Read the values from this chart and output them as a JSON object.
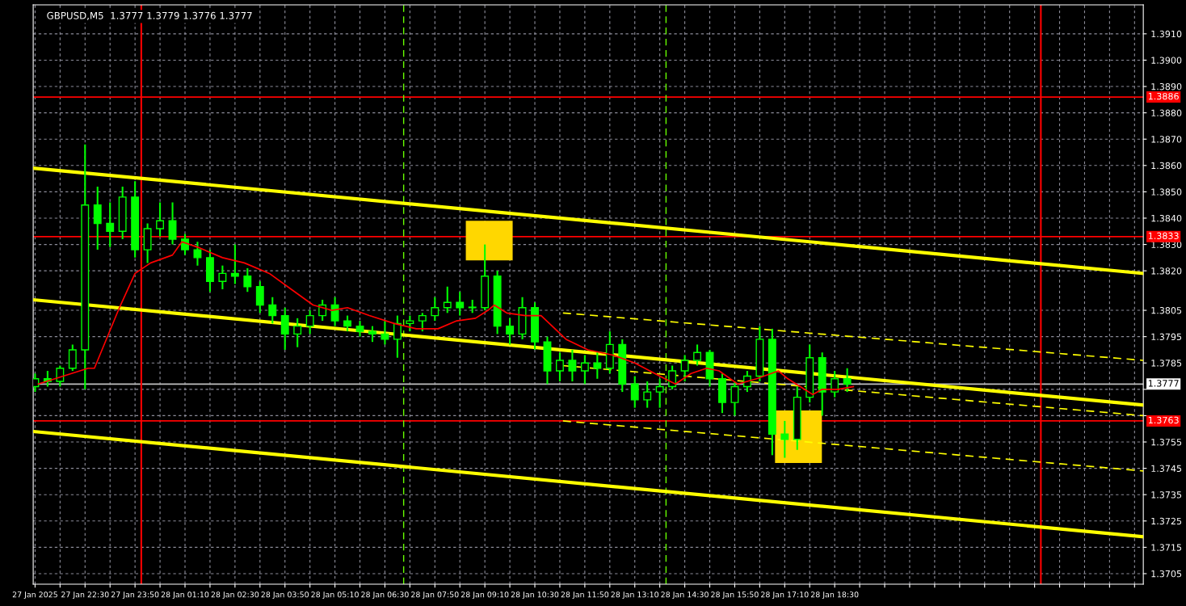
{
  "chart_data": {
    "type": "candlestick",
    "title": "GBPUSD,M5  1.3777 1.3779 1.3776 1.3777",
    "color": "#00ff00",
    "grid": true,
    "x": [
      "2025-01-27T21:10",
      "2025-01-27T21:30",
      "2025-01-27T21:50",
      "2025-01-27T22:10",
      "2025-01-27T22:30",
      "2025-01-27T22:50",
      "2025-01-27T23:10",
      "2025-01-27T23:30",
      "2025-01-27T23:50",
      "2025-01-28T00:10",
      "2025-01-28T00:30",
      "2025-01-28T00:50",
      "2025-01-28T01:10",
      "2025-01-28T01:30",
      "2025-01-28T01:50",
      "2025-01-28T02:10",
      "2025-01-28T02:30",
      "2025-01-28T02:50",
      "2025-01-28T03:10",
      "2025-01-28T03:30",
      "2025-01-28T03:50",
      "2025-01-28T04:10",
      "2025-01-28T04:30",
      "2025-01-28T04:50",
      "2025-01-28T05:10",
      "2025-01-28T05:30",
      "2025-01-28T05:50",
      "2025-01-28T06:10",
      "2025-01-28T06:30",
      "2025-01-28T06:50",
      "2025-01-28T07:10",
      "2025-01-28T07:30",
      "2025-01-28T07:50",
      "2025-01-28T08:10",
      "2025-01-28T08:30",
      "2025-01-28T08:50",
      "2025-01-28T09:10",
      "2025-01-28T09:30",
      "2025-01-28T09:50",
      "2025-01-28T10:10",
      "2025-01-28T10:30",
      "2025-01-28T10:50",
      "2025-01-28T11:10",
      "2025-01-28T11:30",
      "2025-01-28T11:50",
      "2025-01-28T12:10",
      "2025-01-28T12:30",
      "2025-01-28T12:50",
      "2025-01-28T13:10",
      "2025-01-28T13:30",
      "2025-01-28T13:50",
      "2025-01-28T14:10",
      "2025-01-28T14:30",
      "2025-01-28T14:50",
      "2025-01-28T15:10",
      "2025-01-28T15:30",
      "2025-01-28T15:50",
      "2025-01-28T16:10",
      "2025-01-28T16:30",
      "2025-01-28T16:50",
      "2025-01-28T17:10",
      "2025-01-28T17:30",
      "2025-01-28T17:50",
      "2025-01-28T18:10",
      "2025-01-28T18:30",
      "2025-01-28T18:50"
    ],
    "ohlc": [
      [
        1.3776,
        1.3781,
        1.3774,
        1.3779
      ],
      [
        1.3779,
        1.3782,
        1.3776,
        1.3778
      ],
      [
        1.3778,
        1.3784,
        1.3776,
        1.3783
      ],
      [
        1.3783,
        1.3792,
        1.3782,
        1.379
      ],
      [
        1.379,
        1.3868,
        1.3775,
        1.3845
      ],
      [
        1.3845,
        1.3852,
        1.3828,
        1.3838
      ],
      [
        1.3838,
        1.3846,
        1.3829,
        1.3835
      ],
      [
        1.3835,
        1.3852,
        1.3832,
        1.3848
      ],
      [
        1.3848,
        1.3854,
        1.3825,
        1.3828
      ],
      [
        1.3828,
        1.3838,
        1.3823,
        1.3836
      ],
      [
        1.3836,
        1.3846,
        1.3833,
        1.3839
      ],
      [
        1.3839,
        1.3846,
        1.383,
        1.3832
      ],
      [
        1.3832,
        1.3834,
        1.3826,
        1.3828
      ],
      [
        1.3828,
        1.3831,
        1.3822,
        1.3825
      ],
      [
        1.3825,
        1.3828,
        1.3812,
        1.3816
      ],
      [
        1.3816,
        1.3822,
        1.3813,
        1.3819
      ],
      [
        1.3819,
        1.383,
        1.3815,
        1.3818
      ],
      [
        1.3818,
        1.3821,
        1.3812,
        1.3814
      ],
      [
        1.3814,
        1.3816,
        1.3804,
        1.3807
      ],
      [
        1.3807,
        1.381,
        1.38,
        1.3803
      ],
      [
        1.3803,
        1.3806,
        1.379,
        1.3796
      ],
      [
        1.3796,
        1.3802,
        1.3791,
        1.3799
      ],
      [
        1.3799,
        1.3805,
        1.3796,
        1.3803
      ],
      [
        1.3803,
        1.3809,
        1.3801,
        1.3807
      ],
      [
        1.3807,
        1.381,
        1.3799,
        1.3801
      ],
      [
        1.3801,
        1.3803,
        1.3797,
        1.3799
      ],
      [
        1.3799,
        1.3801,
        1.3795,
        1.3797
      ],
      [
        1.3797,
        1.3799,
        1.3793,
        1.3796
      ],
      [
        1.3796,
        1.3801,
        1.3792,
        1.3794
      ],
      [
        1.3794,
        1.3803,
        1.3787,
        1.38
      ],
      [
        1.38,
        1.3803,
        1.3797,
        1.3801
      ],
      [
        1.3801,
        1.3804,
        1.3797,
        1.3803
      ],
      [
        1.3803,
        1.381,
        1.3801,
        1.3806
      ],
      [
        1.3806,
        1.3814,
        1.3804,
        1.3808
      ],
      [
        1.3808,
        1.3812,
        1.3803,
        1.3806
      ],
      [
        1.3806,
        1.3809,
        1.3804,
        1.3806
      ],
      [
        1.3806,
        1.383,
        1.3805,
        1.3818
      ],
      [
        1.3818,
        1.382,
        1.3796,
        1.3799
      ],
      [
        1.3799,
        1.3802,
        1.3792,
        1.3796
      ],
      [
        1.3796,
        1.381,
        1.3794,
        1.3806
      ],
      [
        1.3806,
        1.3808,
        1.379,
        1.3793
      ],
      [
        1.3793,
        1.3795,
        1.3777,
        1.3782
      ],
      [
        1.3782,
        1.3789,
        1.3778,
        1.3786
      ],
      [
        1.3786,
        1.379,
        1.3778,
        1.3782
      ],
      [
        1.3782,
        1.3788,
        1.3777,
        1.3785
      ],
      [
        1.3785,
        1.3789,
        1.3779,
        1.3783
      ],
      [
        1.3783,
        1.3797,
        1.3781,
        1.3792
      ],
      [
        1.3792,
        1.3794,
        1.3774,
        1.3777
      ],
      [
        1.3777,
        1.378,
        1.3768,
        1.3771
      ],
      [
        1.3771,
        1.3778,
        1.3768,
        1.3774
      ],
      [
        1.3774,
        1.3779,
        1.3768,
        1.3776
      ],
      [
        1.3776,
        1.3784,
        1.3775,
        1.3782
      ],
      [
        1.3782,
        1.3788,
        1.3778,
        1.3786
      ],
      [
        1.3786,
        1.3792,
        1.3784,
        1.3789
      ],
      [
        1.3789,
        1.379,
        1.3776,
        1.3779
      ],
      [
        1.3779,
        1.3781,
        1.3766,
        1.377
      ],
      [
        1.377,
        1.3778,
        1.3765,
        1.3776
      ],
      [
        1.3776,
        1.3782,
        1.3774,
        1.378
      ],
      [
        1.378,
        1.3799,
        1.3778,
        1.3794
      ],
      [
        1.3794,
        1.3798,
        1.375,
        1.3758
      ],
      [
        1.3758,
        1.3763,
        1.3749,
        1.3756
      ],
      [
        1.3756,
        1.3776,
        1.3752,
        1.3772
      ],
      [
        1.3772,
        1.3792,
        1.377,
        1.3787
      ],
      [
        1.3787,
        1.3789,
        1.3765,
        1.3774
      ],
      [
        1.3774,
        1.3782,
        1.3772,
        1.3779
      ],
      [
        1.3779,
        1.3783,
        1.3774,
        1.3777
      ]
    ],
    "series": [
      {
        "type": "line",
        "color": "#ff0000",
        "line_style": "solid",
        "x": [
          "2025-01-27T21:15",
          "2025-01-27T22:35",
          "2025-01-27T22:45",
          "2025-01-27T23:25",
          "2025-01-27T23:50",
          "2025-01-28T00:15",
          "2025-01-28T00:50",
          "2025-01-28T01:05",
          "2025-01-28T01:30",
          "2025-01-28T02:10",
          "2025-01-28T02:45",
          "2025-01-28T03:25",
          "2025-01-28T04:00",
          "2025-01-28T04:35",
          "2025-01-28T05:05",
          "2025-01-28T05:30",
          "2025-01-28T06:05",
          "2025-01-28T06:45",
          "2025-01-28T07:20",
          "2025-01-28T07:55",
          "2025-01-28T08:25",
          "2025-01-28T08:55",
          "2025-01-28T09:15",
          "2025-01-28T09:25",
          "2025-01-28T09:45",
          "2025-01-28T10:15",
          "2025-01-28T10:40",
          "2025-01-28T11:20",
          "2025-01-28T11:55",
          "2025-01-28T12:35",
          "2025-01-28T13:10",
          "2025-01-28T13:50",
          "2025-01-28T14:15",
          "2025-01-28T14:40",
          "2025-01-28T15:05",
          "2025-01-28T15:25",
          "2025-01-28T15:55",
          "2025-01-28T16:25",
          "2025-01-28T17:00",
          "2025-01-28T17:15",
          "2025-01-28T17:35",
          "2025-01-28T17:55",
          "2025-01-28T18:10",
          "2025-01-28T18:35",
          "2025-01-28T19:00"
        ],
        "values": [
          1.3777,
          1.3783,
          1.3783,
          1.3806,
          1.3819,
          1.3823,
          1.3826,
          1.3831,
          1.3829,
          1.3825,
          1.3823,
          1.3819,
          1.3813,
          1.3807,
          1.3805,
          1.3806,
          1.3803,
          1.38,
          1.3798,
          1.3798,
          1.3801,
          1.3802,
          1.3805,
          1.3807,
          1.3804,
          1.3803,
          1.3803,
          1.3794,
          1.379,
          1.3788,
          1.3785,
          1.378,
          1.3777,
          1.3781,
          1.3783,
          1.3782,
          1.3777,
          1.3779,
          1.3782,
          1.3779,
          1.3776,
          1.3773,
          1.3775,
          1.3775,
          1.3776
        ]
      },
      {
        "type": "line",
        "color": "#ffff00",
        "line_style": "solid",
        "x": [
          "2025-01-27T21:07",
          "2025-01-29T02:44"
        ],
        "values": [
          1.3859,
          1.3819
        ]
      },
      {
        "type": "line",
        "color": "#ffff00",
        "line_style": "solid",
        "x": [
          "2025-01-27T21:07",
          "2025-01-29T02:44"
        ],
        "values": [
          1.3809,
          1.3769
        ]
      },
      {
        "type": "line",
        "color": "#ffff00",
        "line_style": "solid",
        "x": [
          "2025-01-27T21:07",
          "2025-01-29T02:44"
        ],
        "values": [
          1.3759,
          1.3719
        ]
      },
      {
        "type": "line",
        "color": "#ffff00",
        "line_style": "dashed",
        "x": [
          "2025-01-28T11:15",
          "2025-01-29T02:44"
        ],
        "values": [
          1.3804,
          1.3786
        ]
      },
      {
        "type": "line",
        "color": "#ffff00",
        "line_style": "dashed",
        "x": [
          "2025-01-28T11:15",
          "2025-01-29T02:44"
        ],
        "values": [
          1.3784,
          1.3765
        ]
      },
      {
        "type": "line",
        "color": "#ffff00",
        "line_style": "dashed",
        "x": [
          "2025-01-28T11:15",
          "2025-01-29T02:44"
        ],
        "values": [
          1.3763,
          1.3744
        ]
      },
      {
        "type": "bar",
        "color": "#ffd700",
        "x": [
          "2025-01-28T09:17"
        ],
        "values": [
          0.0015
        ],
        "base": [
          1.3824
        ]
      },
      {
        "type": "bar",
        "color": "#ffd700",
        "x": [
          "2025-01-28T17:32"
        ],
        "values": [
          0.002
        ],
        "base": [
          1.3747
        ]
      }
    ],
    "ref_lines": [
      {
        "axis": "y",
        "value": 1.3886,
        "label": "1.3886",
        "color": "#ff0000"
      },
      {
        "axis": "y",
        "value": 1.3833,
        "label": "1.3833",
        "color": "#ff0000"
      },
      {
        "axis": "y",
        "value": 1.3763,
        "label": "1.3763",
        "color": "#ff0000"
      },
      {
        "axis": "y",
        "value": 1.3777,
        "label": "1.3777",
        "color": "#c0c0c0"
      },
      {
        "axis": "x",
        "value": "2025-01-28T00:00",
        "color": "#ff0000",
        "line_style": "solid"
      },
      {
        "axis": "x",
        "value": "2025-01-29T00:00",
        "color": "#ff0000",
        "line_style": "solid"
      },
      {
        "axis": "x",
        "value": "2025-01-28T07:00",
        "color": "#66ff00",
        "line_style": "dashed"
      },
      {
        "axis": "x",
        "value": "2025-01-28T14:00",
        "color": "#66ff00",
        "line_style": "dashed"
      }
    ],
    "xlim": [
      "2025-01-27T21:07",
      "2025-01-29T02:44"
    ],
    "ylim": [
      1.3701,
      1.3921
    ],
    "xticks": [
      {
        "value": "2025-01-27T21:10",
        "label": "27 Jan 2025"
      },
      {
        "value": "2025-01-27T21:50",
        "label": null
      },
      {
        "value": "2025-01-27T22:30",
        "label": "27 Jan 22:30"
      },
      {
        "value": "2025-01-27T23:10",
        "label": null
      },
      {
        "value": "2025-01-27T23:50",
        "label": "27 Jan 23:50"
      },
      {
        "value": "2025-01-28T00:30",
        "label": null
      },
      {
        "value": "2025-01-28T01:10",
        "label": "28 Jan 01:10"
      },
      {
        "value": "2025-01-28T01:50",
        "label": null
      },
      {
        "value": "2025-01-28T02:30",
        "label": "28 Jan 02:30"
      },
      {
        "value": "2025-01-28T03:10",
        "label": null
      },
      {
        "value": "2025-01-28T03:50",
        "label": "28 Jan 03:50"
      },
      {
        "value": "2025-01-28T04:30",
        "label": null
      },
      {
        "value": "2025-01-28T05:10",
        "label": "28 Jan 05:10"
      },
      {
        "value": "2025-01-28T05:50",
        "label": null
      },
      {
        "value": "2025-01-28T06:30",
        "label": "28 Jan 06:30"
      },
      {
        "value": "2025-01-28T07:10",
        "label": null
      },
      {
        "value": "2025-01-28T07:50",
        "label": "28 Jan 07:50"
      },
      {
        "value": "2025-01-28T08:30",
        "label": null
      },
      {
        "value": "2025-01-28T09:10",
        "label": "28 Jan 09:10"
      },
      {
        "value": "2025-01-28T09:50",
        "label": null
      },
      {
        "value": "2025-01-28T10:30",
        "label": "28 Jan 10:30"
      },
      {
        "value": "2025-01-28T11:10",
        "label": null
      },
      {
        "value": "2025-01-28T11:50",
        "label": "28 Jan 11:50"
      },
      {
        "value": "2025-01-28T12:30",
        "label": null
      },
      {
        "value": "2025-01-28T13:10",
        "label": "28 Jan 13:10"
      },
      {
        "value": "2025-01-28T13:50",
        "label": null
      },
      {
        "value": "2025-01-28T14:30",
        "label": "28 Jan 14:30"
      },
      {
        "value": "2025-01-28T15:10",
        "label": null
      },
      {
        "value": "2025-01-28T15:50",
        "label": "28 Jan 15:50"
      },
      {
        "value": "2025-01-28T16:30",
        "label": null
      },
      {
        "value": "2025-01-28T17:10",
        "label": "28 Jan 17:10"
      },
      {
        "value": "2025-01-28T17:50",
        "label": null
      },
      {
        "value": "2025-01-28T18:30",
        "label": "28 Jan 18:30"
      },
      {
        "value": "2025-01-28T19:10",
        "label": null
      },
      {
        "value": "2025-01-28T19:50",
        "label": null
      },
      {
        "value": "2025-01-28T20:30",
        "label": null
      },
      {
        "value": "2025-01-28T21:10",
        "label": null
      },
      {
        "value": "2025-01-28T21:50",
        "label": null
      },
      {
        "value": "2025-01-28T22:30",
        "label": null
      },
      {
        "value": "2025-01-28T23:10",
        "label": null
      },
      {
        "value": "2025-01-28T23:50",
        "label": null
      },
      {
        "value": "2025-01-29T00:30",
        "label": null
      },
      {
        "value": "2025-01-29T01:10",
        "label": null
      },
      {
        "value": "2025-01-29T01:50",
        "label": null
      },
      {
        "value": "2025-01-29T02:30",
        "label": null
      }
    ],
    "yticks": [
      {
        "value": 1.391,
        "label": "1.3910"
      },
      {
        "value": 1.39,
        "label": "1.3900"
      },
      {
        "value": 1.389,
        "label": "1.3890"
      },
      {
        "value": 1.388,
        "label": "1.3880"
      },
      {
        "value": 1.387,
        "label": "1.3870"
      },
      {
        "value": 1.386,
        "label": "1.3860"
      },
      {
        "value": 1.385,
        "label": "1.3850"
      },
      {
        "value": 1.384,
        "label": "1.3840"
      },
      {
        "value": 1.383,
        "label": "1.3830"
      },
      {
        "value": 1.382,
        "label": "1.3820"
      },
      {
        "value": 1.3805,
        "label": "1.3805"
      },
      {
        "value": 1.3795,
        "label": "1.3795"
      },
      {
        "value": 1.3785,
        "label": "1.3785"
      },
      {
        "value": 1.3775,
        "label": null
      },
      {
        "value": 1.3765,
        "label": null
      },
      {
        "value": 1.3755,
        "label": "1.3755"
      },
      {
        "value": 1.3745,
        "label": "1.3745"
      },
      {
        "value": 1.3735,
        "label": "1.3735"
      },
      {
        "value": 1.3725,
        "label": "1.3725"
      },
      {
        "value": 1.3715,
        "label": "1.3715"
      },
      {
        "value": 1.3705,
        "label": "1.3705"
      }
    ]
  }
}
